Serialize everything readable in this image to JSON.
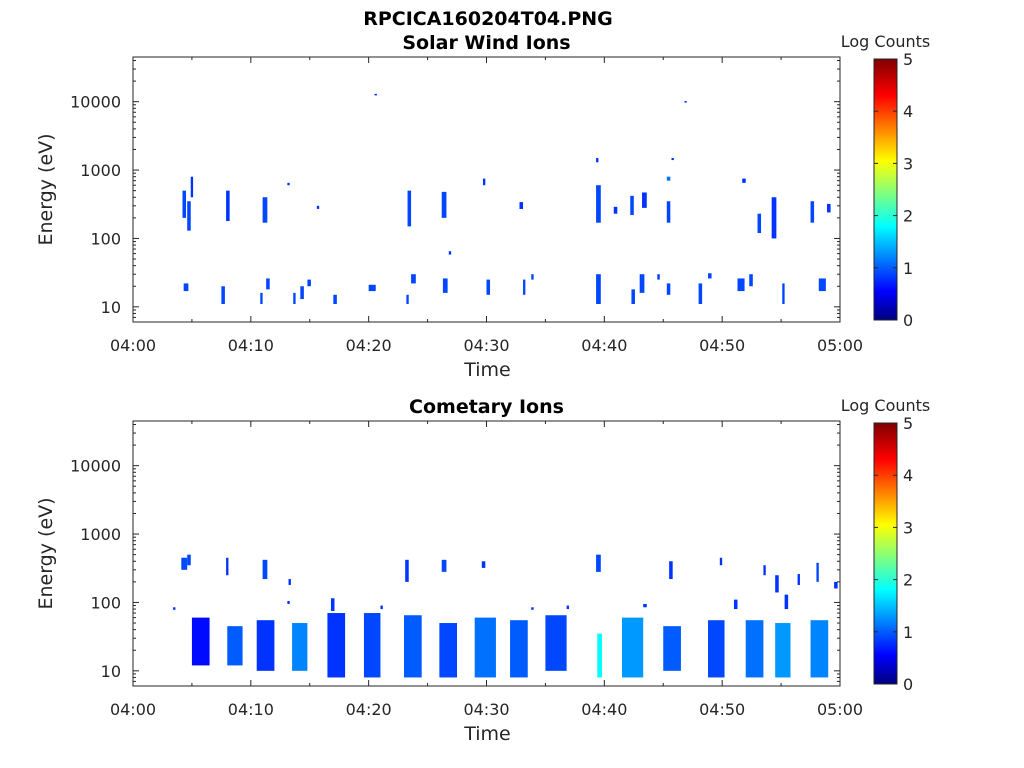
{
  "figure_title": "RPCICA160204T04.PNG",
  "colors": {
    "colormap": [
      "#00007f",
      "#0000ff",
      "#00ffff",
      "#ffff00",
      "#ff0000",
      "#7f0000"
    ],
    "axis": "#262626"
  },
  "chart_data": [
    {
      "type": "heatmap",
      "title": "Solar Wind Ions",
      "xlabel": "Time",
      "ylabel": "Energy (eV)",
      "x_ticks": [
        "04:00",
        "04:10",
        "04:20",
        "04:30",
        "04:40",
        "04:50",
        "05:00"
      ],
      "xlim": [
        0,
        60
      ],
      "y_scale": "log",
      "ylim": [
        6,
        45000
      ],
      "y_ticks": [
        10,
        100,
        1000,
        10000
      ],
      "y_tick_labels": [
        "10",
        "100",
        "1000",
        "10000"
      ],
      "colorbar": {
        "label": "Log Counts",
        "range": [
          0,
          5
        ],
        "ticks": [
          "0",
          "1",
          "2",
          "3",
          "4",
          "5"
        ]
      },
      "cells": [
        [
          4.2,
          4.5,
          200,
          500,
          0.9
        ],
        [
          4.6,
          4.9,
          130,
          350,
          0.9
        ],
        [
          4.9,
          5.1,
          400,
          800,
          0.8
        ],
        [
          7.9,
          8.2,
          180,
          500,
          0.8
        ],
        [
          11,
          11.4,
          170,
          400,
          0.9
        ],
        [
          13.1,
          13.3,
          600,
          650,
          0.8
        ],
        [
          15.6,
          15.8,
          270,
          300,
          0.8
        ],
        [
          20.5,
          20.7,
          12500,
          13000,
          0.7
        ],
        [
          23.3,
          23.6,
          150,
          500,
          0.9
        ],
        [
          26.2,
          26.6,
          200,
          480,
          0.9
        ],
        [
          26.8,
          27,
          58,
          65,
          0.8
        ],
        [
          29.7,
          29.9,
          600,
          750,
          0.8
        ],
        [
          32.8,
          33.1,
          270,
          340,
          0.8
        ],
        [
          39.3,
          39.7,
          170,
          600,
          0.9
        ],
        [
          39.3,
          39.5,
          1300,
          1500,
          0.8
        ],
        [
          40.8,
          41.1,
          230,
          290,
          0.8
        ],
        [
          42.2,
          42.5,
          220,
          420,
          0.9
        ],
        [
          43.2,
          43.6,
          280,
          470,
          0.8
        ],
        [
          45.3,
          45.6,
          700,
          800,
          1.1
        ],
        [
          45.3,
          45.6,
          170,
          350,
          0.9
        ],
        [
          45.7,
          45.9,
          1400,
          1500,
          0.8
        ],
        [
          46.8,
          47,
          9800,
          10200,
          0.8
        ],
        [
          51.7,
          52,
          650,
          750,
          0.8
        ],
        [
          53,
          53.3,
          120,
          230,
          0.9
        ],
        [
          54.2,
          54.6,
          100,
          400,
          0.8
        ],
        [
          57.5,
          57.8,
          170,
          350,
          0.9
        ],
        [
          58.9,
          59.2,
          240,
          320,
          0.8
        ],
        [
          4.3,
          4.7,
          17,
          22,
          0.9
        ],
        [
          7.5,
          7.8,
          11,
          20,
          0.9
        ],
        [
          10.8,
          11,
          11,
          16,
          0.9
        ],
        [
          11.3,
          11.6,
          18,
          26,
          0.9
        ],
        [
          13.6,
          13.8,
          11,
          16,
          0.9
        ],
        [
          14.2,
          14.5,
          13,
          20,
          0.9
        ],
        [
          14.8,
          15.1,
          20,
          25,
          0.9
        ],
        [
          17,
          17.3,
          11,
          15,
          0.9
        ],
        [
          20,
          20.6,
          17,
          21,
          0.9
        ],
        [
          23.2,
          23.4,
          11,
          15,
          0.9
        ],
        [
          23.6,
          24,
          22,
          30,
          0.9
        ],
        [
          26.3,
          26.7,
          16,
          26,
          0.9
        ],
        [
          30,
          30.3,
          15,
          25,
          0.9
        ],
        [
          33.1,
          33.3,
          15,
          25,
          0.9
        ],
        [
          33.8,
          34,
          25,
          30,
          0.9
        ],
        [
          39.3,
          39.7,
          11,
          30,
          0.9
        ],
        [
          42.3,
          42.6,
          11,
          18,
          0.9
        ],
        [
          43,
          43.4,
          16,
          30,
          0.9
        ],
        [
          44.5,
          44.7,
          25,
          30,
          0.8
        ],
        [
          45.3,
          45.6,
          15,
          22,
          0.9
        ],
        [
          48,
          48.3,
          11,
          22,
          0.9
        ],
        [
          48.8,
          49.1,
          26,
          31,
          0.9
        ],
        [
          51.3,
          51.9,
          17,
          26,
          0.9
        ],
        [
          52.3,
          52.6,
          20,
          30,
          0.9
        ],
        [
          55.1,
          55.3,
          11,
          22,
          0.9
        ],
        [
          58.2,
          58.8,
          17,
          26,
          0.9
        ]
      ]
    },
    {
      "type": "heatmap",
      "title": "Cometary Ions",
      "xlabel": "Time",
      "ylabel": "Energy (eV)",
      "x_ticks": [
        "04:00",
        "04:10",
        "04:20",
        "04:30",
        "04:40",
        "04:50",
        "05:00"
      ],
      "xlim": [
        0,
        60
      ],
      "y_scale": "log",
      "ylim": [
        6,
        45000
      ],
      "y_ticks": [
        10,
        100,
        1000,
        10000
      ],
      "y_tick_labels": [
        "10",
        "100",
        "1000",
        "10000"
      ],
      "colorbar": {
        "label": "Log Counts",
        "range": [
          0,
          5
        ],
        "ticks": [
          "0",
          "1",
          "2",
          "3",
          "4",
          "5"
        ]
      },
      "cells": [
        [
          4.1,
          4.6,
          300,
          450,
          0.9
        ],
        [
          4.6,
          4.9,
          350,
          500,
          0.9
        ],
        [
          7.9,
          8.1,
          250,
          450,
          0.8
        ],
        [
          11,
          11.4,
          220,
          420,
          0.9
        ],
        [
          13.2,
          13.4,
          180,
          220,
          0.8
        ],
        [
          23.1,
          23.4,
          200,
          420,
          0.8
        ],
        [
          26.2,
          26.6,
          280,
          420,
          0.9
        ],
        [
          29.6,
          29.9,
          320,
          400,
          0.8
        ],
        [
          39.3,
          39.7,
          280,
          500,
          0.9
        ],
        [
          45.5,
          45.8,
          220,
          400,
          0.8
        ],
        [
          49.8,
          50,
          350,
          450,
          0.8
        ],
        [
          53.5,
          53.7,
          250,
          350,
          0.8
        ],
        [
          56.4,
          56.6,
          180,
          260,
          0.8
        ],
        [
          58,
          58.2,
          200,
          380,
          0.9
        ],
        [
          59.5,
          59.8,
          160,
          200,
          0.8
        ],
        [
          5,
          6.5,
          12,
          60,
          0.6
        ],
        [
          8,
          9.3,
          12,
          45,
          1.0
        ],
        [
          10.5,
          12,
          10,
          55,
          0.8
        ],
        [
          13.5,
          14.8,
          10,
          50,
          1.2
        ],
        [
          16.5,
          18,
          8,
          70,
          0.8
        ],
        [
          19.6,
          21,
          8,
          70,
          0.9
        ],
        [
          23,
          24.5,
          8,
          65,
          1.0
        ],
        [
          26,
          27.5,
          8,
          50,
          0.9
        ],
        [
          29,
          30.8,
          8,
          60,
          1.1
        ],
        [
          32,
          33.5,
          8,
          55,
          1.0
        ],
        [
          35,
          36.8,
          10,
          65,
          0.9
        ],
        [
          39.4,
          39.8,
          8,
          35,
          1.8
        ],
        [
          41.5,
          43.3,
          8,
          60,
          1.3
        ],
        [
          45,
          46.5,
          10,
          45,
          1.0
        ],
        [
          48.8,
          50.2,
          8,
          55,
          0.9
        ],
        [
          52,
          53.5,
          8,
          55,
          1.1
        ],
        [
          54.5,
          55.8,
          8,
          50,
          1.3
        ],
        [
          57.5,
          59,
          8,
          55,
          1.2
        ],
        [
          3.4,
          3.6,
          78,
          85,
          0.8
        ],
        [
          13.1,
          13.3,
          95,
          105,
          0.8
        ],
        [
          16.8,
          17.1,
          75,
          115,
          0.8
        ],
        [
          21,
          21.2,
          80,
          90,
          0.8
        ],
        [
          33.8,
          34,
          78,
          85,
          0.8
        ],
        [
          36.8,
          37,
          80,
          90,
          0.8
        ],
        [
          43.3,
          43.6,
          85,
          95,
          0.8
        ],
        [
          51,
          51.3,
          80,
          110,
          0.8
        ],
        [
          54.5,
          54.8,
          140,
          250,
          0.8
        ],
        [
          55.3,
          55.6,
          80,
          130,
          0.8
        ]
      ]
    }
  ]
}
